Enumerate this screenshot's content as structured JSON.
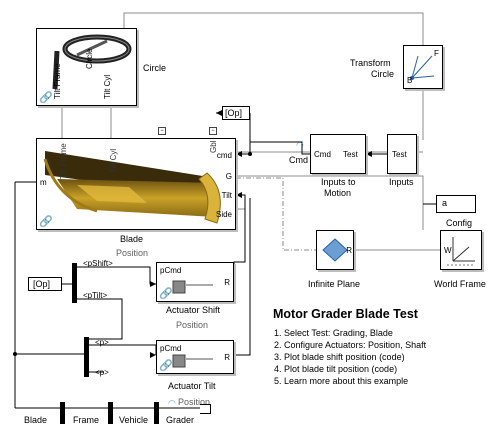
{
  "blocks": {
    "circle": {
      "caption": "Circle",
      "in_labels": [
        "Tilt Frame",
        "Tilt Cyl",
        "Circle"
      ]
    },
    "transform_circle": {
      "caption_l1": "Transform",
      "caption_l2": "Circle",
      "axes": [
        "B",
        "F"
      ]
    },
    "op_goto": {
      "label": "[Op]"
    },
    "op_from": {
      "label": "[Op]"
    },
    "inputs_to_motion": {
      "caption_l1": "Inputs to",
      "caption_l2": "Motion",
      "ports": [
        "Cmd",
        "Test"
      ]
    },
    "inputs": {
      "caption": "Inputs",
      "port": "Test"
    },
    "cmd_signal": {
      "label": "Cmd"
    },
    "blade": {
      "caption": "Blade",
      "variant": "Position",
      "ports_left": [
        "m"
      ],
      "ports_right": [
        "cmd",
        "G",
        "Tilt",
        "Side"
      ],
      "top_labels": [
        "Tilt Frame",
        "Tilt Cyl",
        "Gbl"
      ]
    },
    "config": {
      "caption": "Config",
      "value": "a"
    },
    "infinite_plane": {
      "caption": "Infinite Plane",
      "ports": [
        "R"
      ]
    },
    "world_frame": {
      "caption": "World Frame",
      "port": "W"
    },
    "act_shift": {
      "caption": "Actuator Shift",
      "variant": "Position",
      "ports": [
        "pCmd",
        "R"
      ]
    },
    "act_tilt": {
      "caption": "Actuator Tilt",
      "variant": "Position",
      "ports": [
        "pCmd",
        "R"
      ]
    },
    "bus_labels": {
      "pshift": "<pShift>",
      "ptilt": "<pTilt>",
      "p1": "<p>",
      "p2": "<p>"
    },
    "chain": {
      "blade": "Blade",
      "frame": "Frame",
      "vehicle": "Vehicle",
      "grader": "Grader"
    }
  },
  "description": {
    "title": "Motor Grader Blade Test",
    "steps": [
      "1. Select Test: Grading, Blade",
      "2. Configure Actuators: Position, Shaft",
      "3. Plot blade shift position (code)",
      "4. Plot blade tilt position (code)",
      "5. Learn more about this example"
    ]
  },
  "colors": {
    "wire": "#000000",
    "frame_wire": "#8c8c8c",
    "blade_gold": "#c9a227",
    "plane_blue": "#6b9fd4",
    "shadow": "#bdbdbd"
  }
}
